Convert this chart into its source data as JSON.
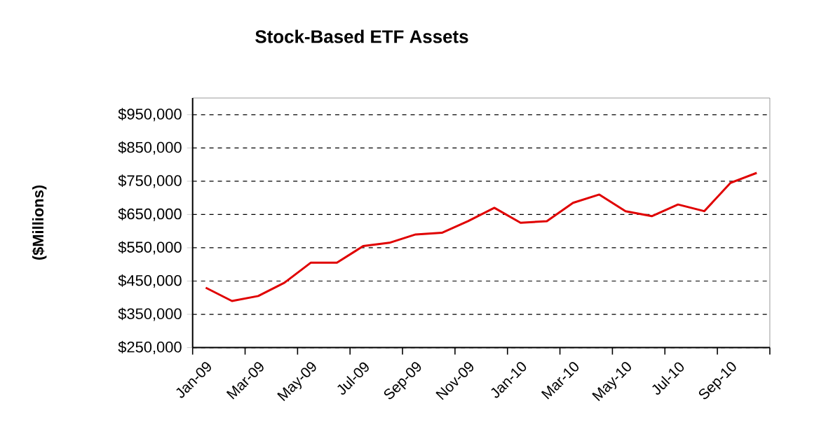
{
  "chart_data": {
    "type": "line",
    "title": "Stock-Based ETF Assets",
    "ylabel": "($Millions)",
    "categories": [
      "Jan-09",
      null,
      "Mar-09",
      null,
      "May-09",
      null,
      "Jul-09",
      null,
      "Sep-09",
      null,
      "Nov-09",
      null,
      "Jan-10",
      null,
      "Mar-10",
      null,
      "May-10",
      null,
      "Jul-10",
      null,
      "Sep-10",
      null
    ],
    "series": [
      {
        "color": "#e00000",
        "values": [
          430000,
          390000,
          405000,
          445000,
          505000,
          505000,
          555000,
          565000,
          590000,
          595000,
          630000,
          670000,
          625000,
          630000,
          685000,
          710000,
          660000,
          645000,
          680000,
          660000,
          745000,
          775000
        ]
      }
    ],
    "ylim": [
      250000,
      1000000
    ],
    "yticks": [
      {
        "value": 250000,
        "label": "$250,000"
      },
      {
        "value": 350000,
        "label": "$350,000"
      },
      {
        "value": 450000,
        "label": "$450,000"
      },
      {
        "value": 550000,
        "label": "$550,000"
      },
      {
        "value": 650000,
        "label": "$650,000"
      },
      {
        "value": 750000,
        "label": "$750,000"
      },
      {
        "value": 850000,
        "label": "$850,000"
      },
      {
        "value": 950000,
        "label": "$950,000"
      }
    ],
    "grid": "y",
    "marker": "none",
    "line_style": "solid"
  }
}
